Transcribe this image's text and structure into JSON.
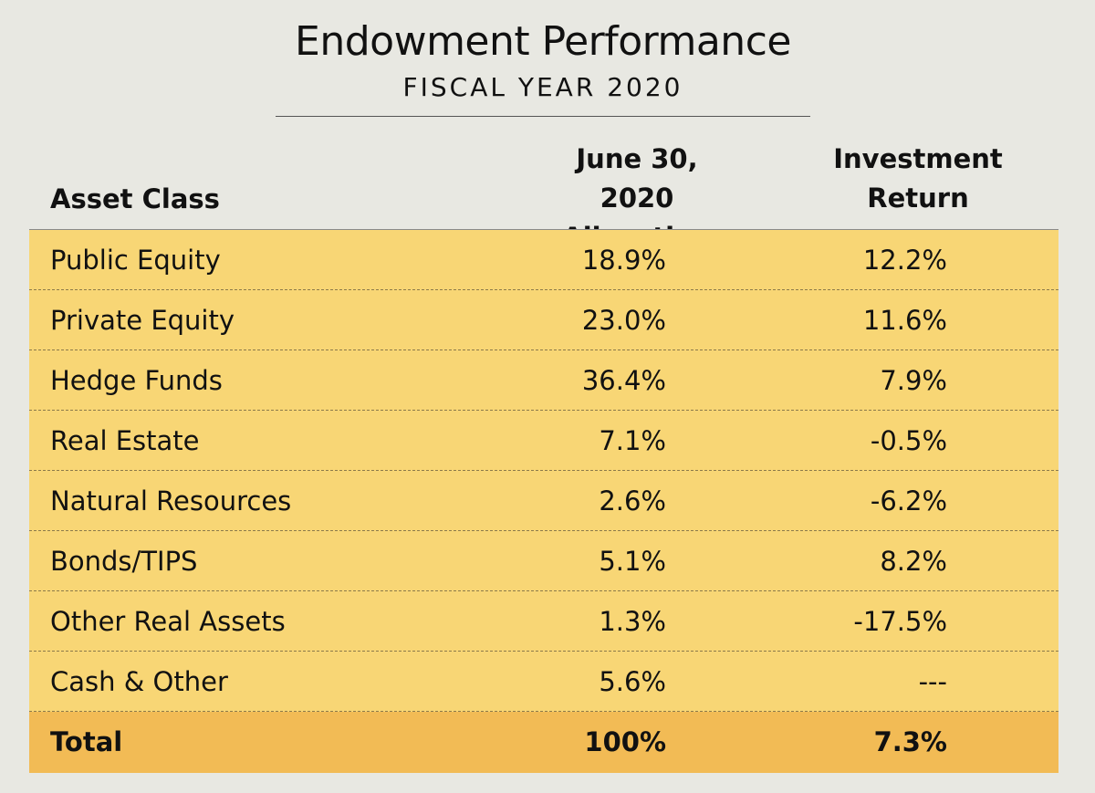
{
  "chart_data": {
    "type": "table",
    "title": "Endowment Performance",
    "subtitle": "FISCAL YEAR 2020",
    "columns": {
      "asset": "Asset Class",
      "alloc_line1": "June 30, 2020",
      "alloc_line2": "Allocation",
      "ret_line1": "Investment",
      "ret_line2": "Return"
    },
    "rows": [
      {
        "asset": "Public Equity",
        "allocation": "18.9%",
        "return": "12.2%"
      },
      {
        "asset": "Private Equity",
        "allocation": "23.0%",
        "return": "11.6%"
      },
      {
        "asset": "Hedge Funds",
        "allocation": "36.4%",
        "return": "7.9%"
      },
      {
        "asset": "Real Estate",
        "allocation": "7.1%",
        "return": "-0.5%"
      },
      {
        "asset": "Natural Resources",
        "allocation": "2.6%",
        "return": "-6.2%"
      },
      {
        "asset": "Bonds/TIPS",
        "allocation": "5.1%",
        "return": "8.2%"
      },
      {
        "asset": "Other Real Assets",
        "allocation": "1.3%",
        "return": "-17.5%"
      },
      {
        "asset": "Cash & Other",
        "allocation": "5.6%",
        "return": "---"
      }
    ],
    "total": {
      "asset": "Total",
      "allocation": "100%",
      "return": "7.3%"
    },
    "colors": {
      "background": "#e8e8e2",
      "row_fill": "#f8d675",
      "total_fill": "#f2bb55"
    }
  }
}
